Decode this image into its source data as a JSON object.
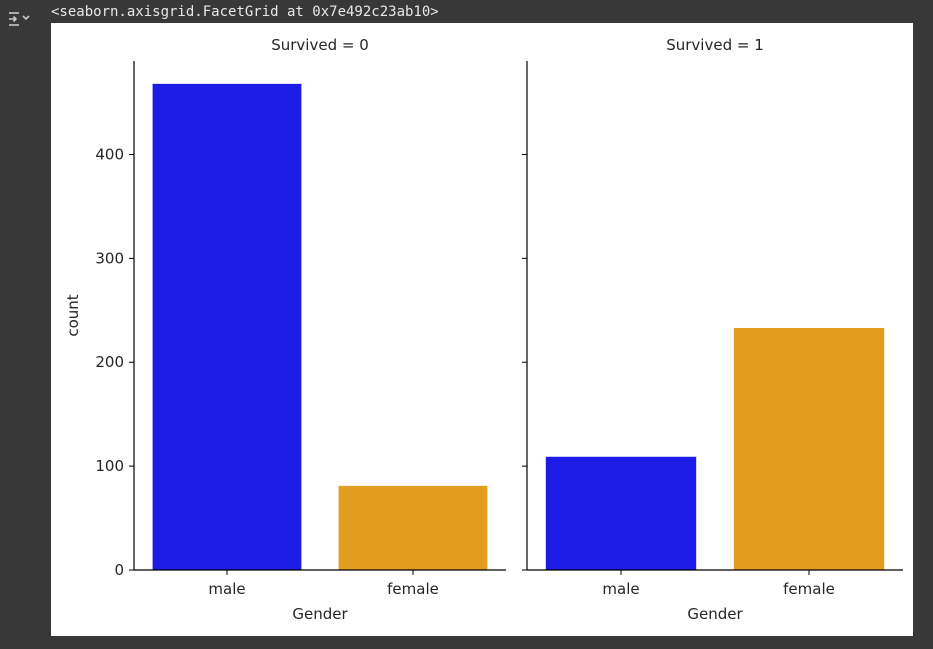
{
  "output": {
    "repr_text": "<seaborn.axisgrid.FacetGrid at 0x7e492c23ab10>",
    "icon": "output-collapse-icon"
  },
  "colors": {
    "male": "#1c1ce6",
    "female": "#e29d20"
  },
  "chart_data": [
    {
      "type": "bar",
      "title": "Survived = 0",
      "xlabel": "Gender",
      "ylabel": "count",
      "categories": [
        "male",
        "female"
      ],
      "values": [
        468,
        81
      ],
      "ylim": [
        0,
        490
      ],
      "yticks": [
        0,
        100,
        200,
        300,
        400
      ],
      "ytick_labels": [
        "0",
        "100",
        "200",
        "300",
        "400"
      ],
      "grid": false
    },
    {
      "type": "bar",
      "title": "Survived = 1",
      "xlabel": "Gender",
      "ylabel": "",
      "categories": [
        "male",
        "female"
      ],
      "values": [
        109,
        233
      ],
      "ylim": [
        0,
        490
      ],
      "yticks": [
        0,
        100,
        200,
        300,
        400
      ],
      "ytick_labels": [],
      "grid": false
    }
  ]
}
